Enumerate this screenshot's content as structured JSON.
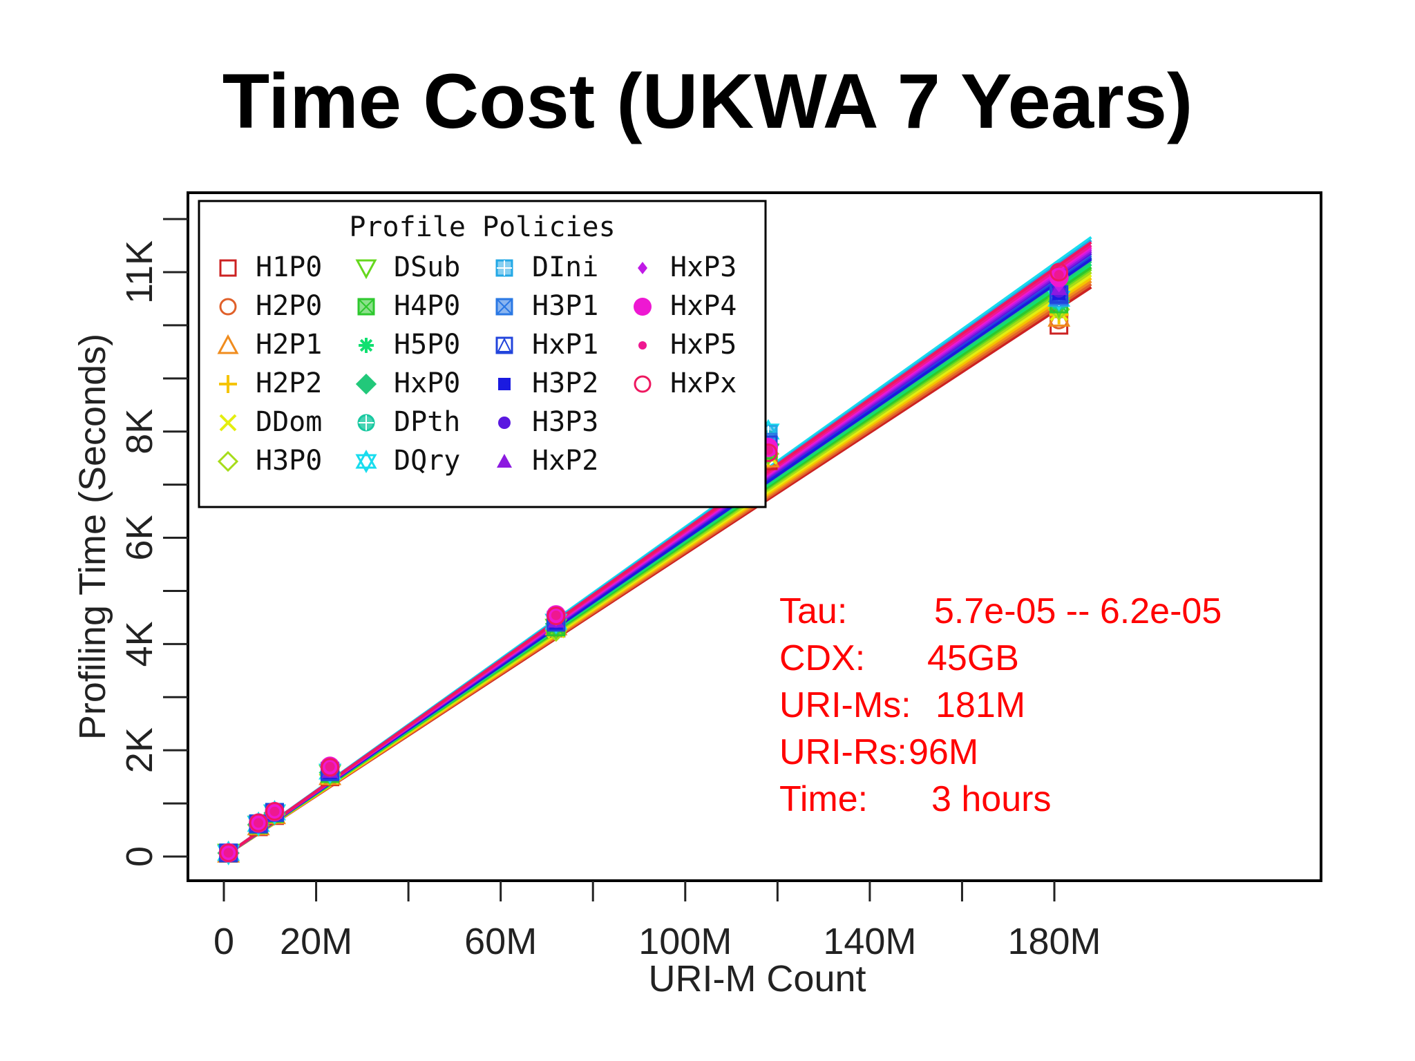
{
  "title": "Time Cost (UKWA 7 Years)",
  "chart_data": {
    "type": "scatter",
    "xlabel": "URI-M Count",
    "ylabel": "Profiling Time (Seconds)",
    "xlim": [
      -3,
      188
    ],
    "ylim": [
      -500,
      12500
    ],
    "x_ticks": [
      0,
      20,
      60,
      100,
      140,
      180
    ],
    "x_tick_labels": [
      "0",
      "20M",
      "60M",
      "100M",
      "140M",
      "180M"
    ],
    "x_minor_ticks": [
      40,
      80,
      120,
      160
    ],
    "y_ticks": [
      0,
      2000,
      4000,
      6000,
      8000,
      11000
    ],
    "y_tick_labels": [
      "0",
      "2K",
      "4K",
      "6K",
      "8K",
      "11K"
    ],
    "y_minor_ticks": [
      1000,
      3000,
      5000,
      7000,
      9000,
      10000,
      12000
    ],
    "x_units": "M",
    "legend": {
      "title": "Profile Policies",
      "placement": "top-left",
      "entries": [
        {
          "name": "H1P0",
          "color": "#cc2222",
          "marker": "square-open"
        },
        {
          "name": "H2P0",
          "color": "#e0602a",
          "marker": "circle-open"
        },
        {
          "name": "H2P1",
          "color": "#f08c1e",
          "marker": "triangle-open"
        },
        {
          "name": "H2P2",
          "color": "#f5c400",
          "marker": "plus"
        },
        {
          "name": "DDom",
          "color": "#e4ee10",
          "marker": "cross"
        },
        {
          "name": "H3P0",
          "color": "#a6dc1a",
          "marker": "diamond-open"
        },
        {
          "name": "DSub",
          "color": "#66d81e",
          "marker": "triangle-down-open"
        },
        {
          "name": "H4P0",
          "color": "#2ec82e",
          "marker": "square-x"
        },
        {
          "name": "H5P0",
          "color": "#10e070",
          "marker": "asterisk"
        },
        {
          "name": "HxP0",
          "color": "#22c87a",
          "marker": "diamond-plus"
        },
        {
          "name": "DPth",
          "color": "#18c8a0",
          "marker": "circle-plus"
        },
        {
          "name": "DQry",
          "color": "#18dcee",
          "marker": "star-of-david"
        },
        {
          "name": "DIni",
          "color": "#22a8e6",
          "marker": "square-plus"
        },
        {
          "name": "H3P1",
          "color": "#2a78e4",
          "marker": "square-x"
        },
        {
          "name": "HxP1",
          "color": "#2244dc",
          "marker": "triangle-square"
        },
        {
          "name": "H3P2",
          "color": "#1a1ae0",
          "marker": "square-solid"
        },
        {
          "name": "H3P3",
          "color": "#5a18e0",
          "marker": "circle-solid"
        },
        {
          "name": "HxP2",
          "color": "#8c1ae0",
          "marker": "triangle-solid"
        },
        {
          "name": "HxP3",
          "color": "#c01ae6",
          "marker": "diamond-solid"
        },
        {
          "name": "HxP4",
          "color": "#ee18d2",
          "marker": "circle-solid-large"
        },
        {
          "name": "HxP5",
          "color": "#ee1890",
          "marker": "circle-solid-small"
        },
        {
          "name": "HxPx",
          "color": "#ee1860",
          "marker": "circle-open"
        }
      ]
    },
    "x_points": [
      1,
      7.5,
      11,
      23,
      72,
      118,
      181
    ],
    "series": [
      {
        "name": "H1P0",
        "slope": 57.0,
        "y": [
          60,
          560,
          770,
          1500,
          4300,
          7450,
          10000
        ]
      },
      {
        "name": "H2P0",
        "slope": 57.3,
        "y": [
          62,
          570,
          780,
          1510,
          4320,
          7480,
          10100
        ]
      },
      {
        "name": "H2P1",
        "slope": 57.6,
        "y": [
          62,
          575,
          785,
          1520,
          4340,
          7500,
          10150
        ]
      },
      {
        "name": "H2P2",
        "slope": 57.9,
        "y": [
          63,
          580,
          790,
          1525,
          4350,
          7520,
          10200
        ]
      },
      {
        "name": "DDom",
        "slope": 58.2,
        "y": [
          64,
          585,
          795,
          1530,
          4280,
          7550,
          10250
        ]
      },
      {
        "name": "H3P0",
        "slope": 58.5,
        "y": [
          64,
          590,
          800,
          1540,
          4250,
          7580,
          10300
        ]
      },
      {
        "name": "DSub",
        "slope": 58.8,
        "y": [
          65,
          595,
          805,
          1550,
          4300,
          7600,
          10350
        ]
      },
      {
        "name": "H4P0",
        "slope": 59.0,
        "y": [
          65,
          600,
          810,
          1560,
          4320,
          7650,
          10400
        ]
      },
      {
        "name": "H5P0",
        "slope": 59.3,
        "y": [
          66,
          600,
          815,
          1570,
          4350,
          7700,
          10420
        ]
      },
      {
        "name": "HxP0",
        "slope": 59.6,
        "y": [
          66,
          605,
          820,
          1580,
          4380,
          7750,
          10450
        ]
      },
      {
        "name": "DPth",
        "slope": 59.9,
        "y": [
          67,
          610,
          825,
          1590,
          4400,
          7850,
          10480
        ]
      },
      {
        "name": "DQry",
        "slope": 62.0,
        "y": [
          68,
          615,
          830,
          1600,
          4420,
          8000,
          10500
        ]
      },
      {
        "name": "DIni",
        "slope": 61.7,
        "y": [
          68,
          620,
          835,
          1610,
          4450,
          7950,
          10520
        ]
      },
      {
        "name": "H3P1",
        "slope": 60.2,
        "y": [
          68,
          615,
          830,
          1600,
          4420,
          7800,
          10550
        ]
      },
      {
        "name": "HxP1",
        "slope": 60.0,
        "y": [
          67,
          612,
          828,
          1595,
          4410,
          7750,
          10580
        ]
      },
      {
        "name": "H3P2",
        "slope": 59.8,
        "y": [
          67,
          610,
          825,
          1590,
          4400,
          7700,
          10600
        ]
      },
      {
        "name": "H3P3",
        "slope": 60.4,
        "y": [
          68,
          618,
          832,
          1605,
          4430,
          7720,
          10650
        ]
      },
      {
        "name": "HxP2",
        "slope": 60.6,
        "y": [
          68,
          620,
          835,
          1610,
          4440,
          7740,
          10700
        ]
      },
      {
        "name": "HxP3",
        "slope": 60.8,
        "y": [
          69,
          625,
          840,
          1620,
          4460,
          7760,
          10750
        ]
      },
      {
        "name": "HxP4",
        "slope": 61.0,
        "y": [
          70,
          630,
          845,
          1700,
          4550,
          7700,
          10900
        ]
      },
      {
        "name": "HxP5",
        "slope": 61.2,
        "y": [
          70,
          632,
          848,
          1690,
          4540,
          7650,
          10950
        ]
      },
      {
        "name": "HxPx",
        "slope": 61.5,
        "y": [
          70,
          635,
          850,
          1680,
          4530,
          7600,
          11000
        ]
      }
    ],
    "annotations": [
      {
        "label": "Tau:",
        "value": "5.7e-05 -- 6.2e-05"
      },
      {
        "label": "CDX:",
        "value": "45GB"
      },
      {
        "label": "URI-Ms:",
        "value": "181M"
      },
      {
        "label": "URI-Rs:",
        "value": "96M"
      },
      {
        "label": "Time:",
        "value": "3 hours"
      }
    ],
    "grid": false
  }
}
